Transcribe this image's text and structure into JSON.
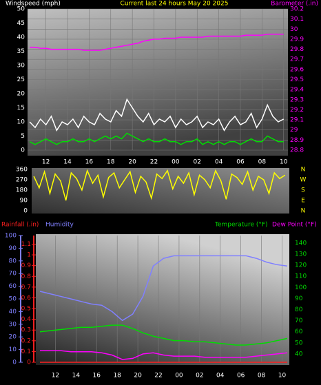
{
  "chart_data": [
    {
      "type": "line",
      "title": "Current last 24 hours May 20 2025",
      "ylabel": "Windspeed (mph)",
      "y2label": "Barometer (.in)",
      "title_color": "#ffff00",
      "y_color": "#ffffff",
      "y2_color": "#ff00ff",
      "grid": true,
      "xlim": [
        10.3,
        34.4
      ],
      "xticks": [
        12,
        14,
        16,
        18,
        20,
        22,
        {
          "value": 24,
          "label": "00"
        },
        {
          "value": 26,
          "label": "02"
        },
        {
          "value": 28,
          "label": "04"
        },
        {
          "value": 30,
          "label": "06"
        },
        {
          "value": 32,
          "label": "08"
        },
        {
          "value": 34,
          "label": "10"
        }
      ],
      "ylim": [
        0,
        50
      ],
      "yticks": [
        0,
        5,
        10,
        15,
        20,
        25,
        30,
        35,
        40,
        45,
        50
      ],
      "y2lim": [
        28.8,
        30.2
      ],
      "y2ticks": [
        28.8,
        28.9,
        29,
        29.1,
        29.2,
        29.3,
        29.4,
        29.5,
        29.6,
        29.7,
        29.8,
        29.9,
        30,
        30.1,
        30.2
      ],
      "x": [
        10.5,
        11,
        11.5,
        12,
        12.5,
        13,
        13.5,
        14,
        14.5,
        15,
        15.5,
        16,
        16.5,
        17,
        17.5,
        18,
        18.5,
        19,
        19.5,
        20,
        20.5,
        21,
        21.5,
        22,
        22.5,
        23,
        23.5,
        24,
        24.5,
        25,
        25.5,
        26,
        26.5,
        27,
        27.5,
        28,
        28.5,
        29,
        29.5,
        30,
        30.5,
        31,
        31.5,
        32,
        32.5,
        33,
        33.5,
        34
      ],
      "series": [
        {
          "color": "#ffffff",
          "values": [
            10,
            8,
            11,
            9,
            12,
            7,
            10,
            9,
            11,
            8,
            12,
            10,
            9,
            13,
            11,
            10,
            14,
            12,
            18,
            15,
            12,
            10,
            13,
            9,
            11,
            10,
            12,
            8,
            11,
            9,
            10,
            12,
            8,
            10,
            9,
            11,
            7,
            10,
            12,
            9,
            10,
            13,
            8,
            11,
            16,
            12,
            10,
            11
          ]
        },
        {
          "color": "#00dd00",
          "values": [
            3,
            2,
            3,
            4,
            3,
            2,
            3,
            3,
            4,
            3,
            3,
            4,
            3,
            4,
            5,
            4,
            5,
            4,
            6,
            5,
            4,
            3,
            4,
            3,
            3,
            4,
            3,
            3,
            2,
            3,
            3,
            4,
            2,
            3,
            2,
            3,
            2,
            3,
            3,
            2,
            3,
            4,
            3,
            3,
            5,
            4,
            3,
            3
          ]
        },
        {
          "color": "#ff00ff",
          "axis": "y2",
          "values": [
            29.82,
            29.82,
            29.81,
            29.81,
            29.8,
            29.8,
            29.8,
            29.8,
            29.8,
            29.8,
            29.79,
            29.79,
            29.79,
            29.79,
            29.8,
            29.81,
            29.82,
            29.83,
            29.84,
            29.85,
            29.86,
            29.88,
            29.89,
            29.9,
            29.9,
            29.91,
            29.91,
            29.91,
            29.92,
            29.92,
            29.92,
            29.92,
            29.92,
            29.93,
            29.93,
            29.93,
            29.93,
            29.93,
            29.93,
            29.93,
            29.94,
            29.94,
            29.94,
            29.94,
            29.95,
            29.95,
            29.95,
            29.95
          ]
        }
      ]
    },
    {
      "type": "line",
      "y_color": "#ffffff",
      "y2_color": "#ffff00",
      "xlim": [
        10.3,
        34.4
      ],
      "ylim": [
        0,
        360
      ],
      "yticks": [
        0,
        90,
        180,
        270,
        360
      ],
      "y2lim": [
        0,
        360
      ],
      "y2ticks": [
        {
          "value": 360,
          "label": "N"
        },
        {
          "value": 270,
          "label": "W"
        },
        {
          "value": 180,
          "label": "S"
        },
        {
          "value": 90,
          "label": "E"
        },
        {
          "value": 0,
          "label": "N"
        }
      ],
      "x": [
        10.5,
        11,
        11.5,
        12,
        12.5,
        13,
        13.5,
        14,
        14.5,
        15,
        15.5,
        16,
        16.5,
        17,
        17.5,
        18,
        18.5,
        19,
        19.5,
        20,
        20.5,
        21,
        21.5,
        22,
        22.5,
        23,
        23.5,
        24,
        24.5,
        25,
        25.5,
        26,
        26.5,
        27,
        27.5,
        28,
        28.5,
        29,
        29.5,
        30,
        30.5,
        31,
        31.5,
        32,
        32.5,
        33,
        33.5,
        34
      ],
      "series": [
        {
          "color": "#ffff00",
          "values": [
            300,
            200,
            340,
            150,
            320,
            260,
            90,
            330,
            280,
            180,
            350,
            240,
            310,
            120,
            290,
            330,
            200,
            270,
            340,
            160,
            300,
            250,
            110,
            320,
            280,
            350,
            190,
            300,
            240,
            330,
            140,
            310,
            270,
            200,
            350,
            260,
            100,
            320,
            290,
            230,
            340,
            180,
            300,
            270,
            150,
            330,
            280,
            310
          ]
        }
      ]
    },
    {
      "type": "line",
      "y_color": "#8080ff",
      "y2_color": "#ff2020",
      "y3_color": "#00dd00",
      "grid": true,
      "xlim": [
        10.1,
        34.7
      ],
      "xticks": [
        12,
        14,
        16,
        18,
        20,
        22,
        {
          "value": 24,
          "label": "00"
        },
        {
          "value": 26,
          "label": "02"
        },
        {
          "value": 28,
          "label": "04"
        },
        {
          "value": 30,
          "label": "06"
        },
        {
          "value": 32,
          "label": "08"
        },
        {
          "value": 34,
          "label": "10"
        }
      ],
      "ylim": [
        0,
        100
      ],
      "yticks": [
        0,
        10,
        20,
        30,
        40,
        50,
        60,
        70,
        80,
        90,
        100
      ],
      "y2lim": [
        0,
        1.18
      ],
      "y2ticks": [
        0,
        0.1,
        0.2,
        0.3,
        0.4,
        0.5,
        0.6,
        0.7,
        0.8,
        0.9,
        1,
        1.1
      ],
      "y3lim": [
        32.5,
        146.8
      ],
      "y3ticks": [
        40,
        50,
        60,
        70,
        80,
        90,
        100,
        110,
        120,
        130,
        140
      ],
      "x": [
        10.5,
        11.5,
        12.5,
        13.5,
        14.5,
        15.5,
        16.5,
        17.5,
        18.5,
        19.5,
        20.5,
        21.5,
        22.5,
        23.5,
        24.5,
        25.5,
        26.5,
        27.5,
        28.5,
        29.5,
        30.5,
        31.5,
        32.5,
        33.5,
        34.5
      ],
      "series": [
        {
          "name": "Rainfall (.in)",
          "color": "#ff2020",
          "axis": "y2",
          "values": [
            0,
            0,
            0,
            0,
            0,
            0,
            0,
            0,
            0,
            0,
            0,
            0,
            0,
            0,
            0,
            0,
            0,
            0,
            0,
            0,
            0,
            0,
            0,
            0,
            0
          ]
        },
        {
          "name": "Humidity",
          "color": "#8080ff",
          "values": [
            56,
            54,
            52,
            50,
            48,
            46,
            45,
            40,
            33,
            38,
            52,
            76,
            82,
            84,
            84,
            84,
            84,
            84,
            84,
            84,
            84,
            82,
            79,
            77,
            76
          ]
        },
        {
          "name": "Temperature (°F)",
          "color": "#00dd00",
          "axis": "y3",
          "values": [
            60,
            61,
            62,
            63,
            64,
            64,
            65,
            66,
            66,
            63,
            59,
            56,
            54,
            52,
            52,
            51,
            51,
            50,
            49,
            48,
            48,
            49,
            50,
            52,
            54
          ]
        },
        {
          "name": "Dew Point (°F)",
          "color": "#ff00ff",
          "axis": "y3",
          "values": [
            43,
            43,
            43,
            42,
            42,
            42,
            41,
            39,
            35,
            36,
            40,
            41,
            39,
            38,
            38,
            38,
            37,
            37,
            37,
            37,
            37,
            38,
            39,
            40,
            41
          ]
        }
      ]
    }
  ]
}
